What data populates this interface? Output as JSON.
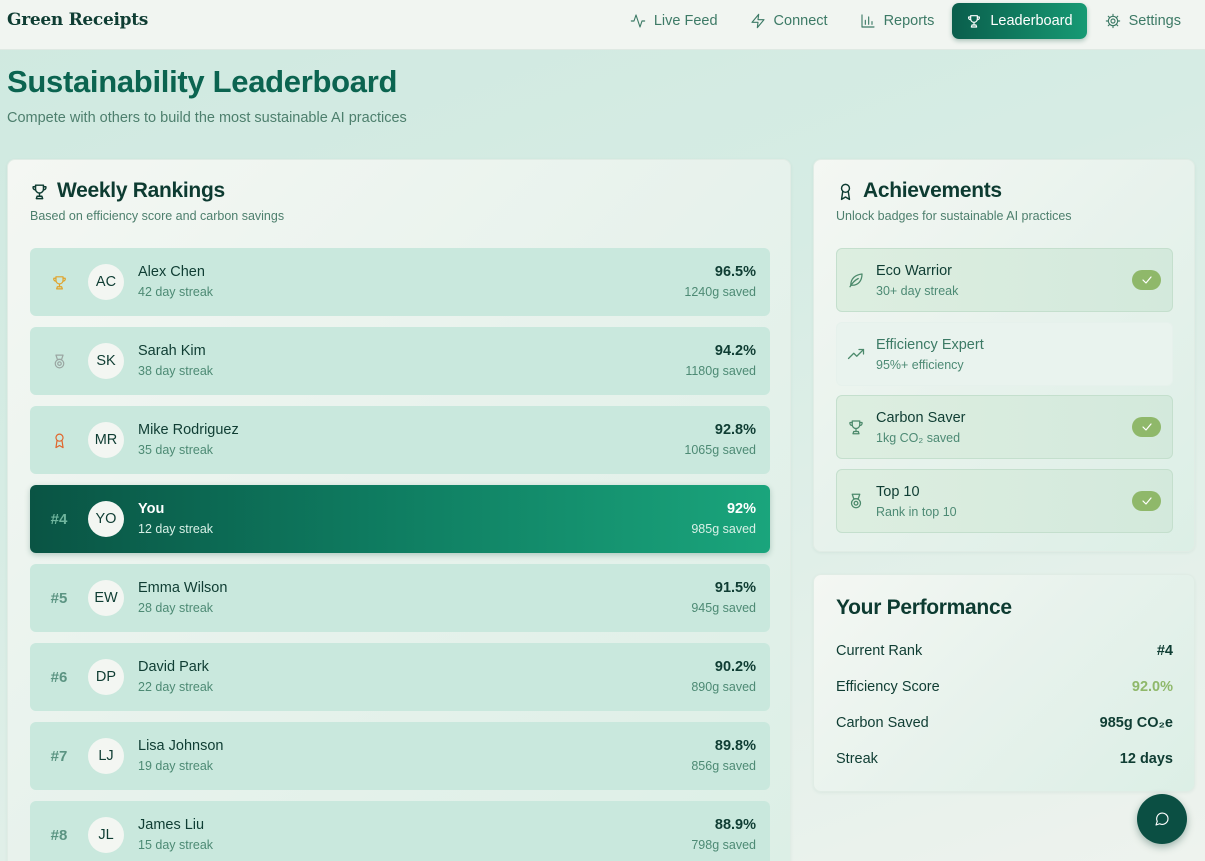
{
  "app": {
    "brand": "Green Receipts"
  },
  "nav": {
    "items": [
      {
        "label": "Live Feed",
        "icon": "activity-icon",
        "active": false
      },
      {
        "label": "Connect",
        "icon": "zap-icon",
        "active": false
      },
      {
        "label": "Reports",
        "icon": "bar-chart-icon",
        "active": false
      },
      {
        "label": "Leaderboard",
        "icon": "trophy-icon",
        "active": true
      },
      {
        "label": "Settings",
        "icon": "gear-icon",
        "active": false
      }
    ]
  },
  "page": {
    "title": "Sustainability Leaderboard",
    "subtitle": "Compete with others to build the most sustainable AI practices"
  },
  "rankings": {
    "title": "Weekly Rankings",
    "subtitle": "Based on efficiency score and carbon savings",
    "rows": [
      {
        "rank": "",
        "medal": "gold-trophy-icon",
        "initials": "AC",
        "name": "Alex Chen",
        "streak": "42 day streak",
        "score": "96.5%",
        "saved": "1240g saved"
      },
      {
        "rank": "",
        "medal": "silver-medal-icon",
        "initials": "SK",
        "name": "Sarah Kim",
        "streak": "38 day streak",
        "score": "94.2%",
        "saved": "1180g saved"
      },
      {
        "rank": "",
        "medal": "bronze-award-icon",
        "initials": "MR",
        "name": "Mike Rodriguez",
        "streak": "35 day streak",
        "score": "92.8%",
        "saved": "1065g saved"
      },
      {
        "rank": "#4",
        "medal": "",
        "initials": "YO",
        "name": "You",
        "streak": "12 day streak",
        "score": "92%",
        "saved": "985g saved",
        "current_user": true
      },
      {
        "rank": "#5",
        "medal": "",
        "initials": "EW",
        "name": "Emma Wilson",
        "streak": "28 day streak",
        "score": "91.5%",
        "saved": "945g saved"
      },
      {
        "rank": "#6",
        "medal": "",
        "initials": "DP",
        "name": "David Park",
        "streak": "22 day streak",
        "score": "90.2%",
        "saved": "890g saved"
      },
      {
        "rank": "#7",
        "medal": "",
        "initials": "LJ",
        "name": "Lisa Johnson",
        "streak": "19 day streak",
        "score": "89.8%",
        "saved": "856g saved"
      },
      {
        "rank": "#8",
        "medal": "",
        "initials": "JL",
        "name": "James Liu",
        "streak": "15 day streak",
        "score": "88.9%",
        "saved": "798g saved"
      }
    ]
  },
  "achievements": {
    "title": "Achievements",
    "subtitle": "Unlock badges for sustainable AI practices",
    "badges": [
      {
        "name": "Eco Warrior",
        "desc": "30+ day streak",
        "icon": "leaf-icon",
        "unlocked": true
      },
      {
        "name": "Efficiency Expert",
        "desc": "95%+ efficiency",
        "icon": "trending-up-icon",
        "unlocked": false
      },
      {
        "name": "Carbon Saver",
        "desc": "1kg CO₂ saved",
        "icon": "trophy-icon",
        "unlocked": true
      },
      {
        "name": "Top 10",
        "desc": "Rank in top 10",
        "icon": "medal-icon",
        "unlocked": true
      }
    ]
  },
  "performance": {
    "title": "Your Performance",
    "rows": [
      {
        "label": "Current Rank",
        "value": "#4"
      },
      {
        "label": "Efficiency Score",
        "value": "92.0%",
        "accent": true
      },
      {
        "label": "Carbon Saved",
        "value": "985g CO₂e"
      },
      {
        "label": "Streak",
        "value": "12 days"
      }
    ]
  },
  "colors": {
    "primary": "#0b6450",
    "accent": "#8fb86a",
    "gold": "#e0a32a",
    "silver": "#9aa6a2",
    "bronze": "#e0662c"
  },
  "chat": {
    "icon": "chat-bubble-icon"
  }
}
